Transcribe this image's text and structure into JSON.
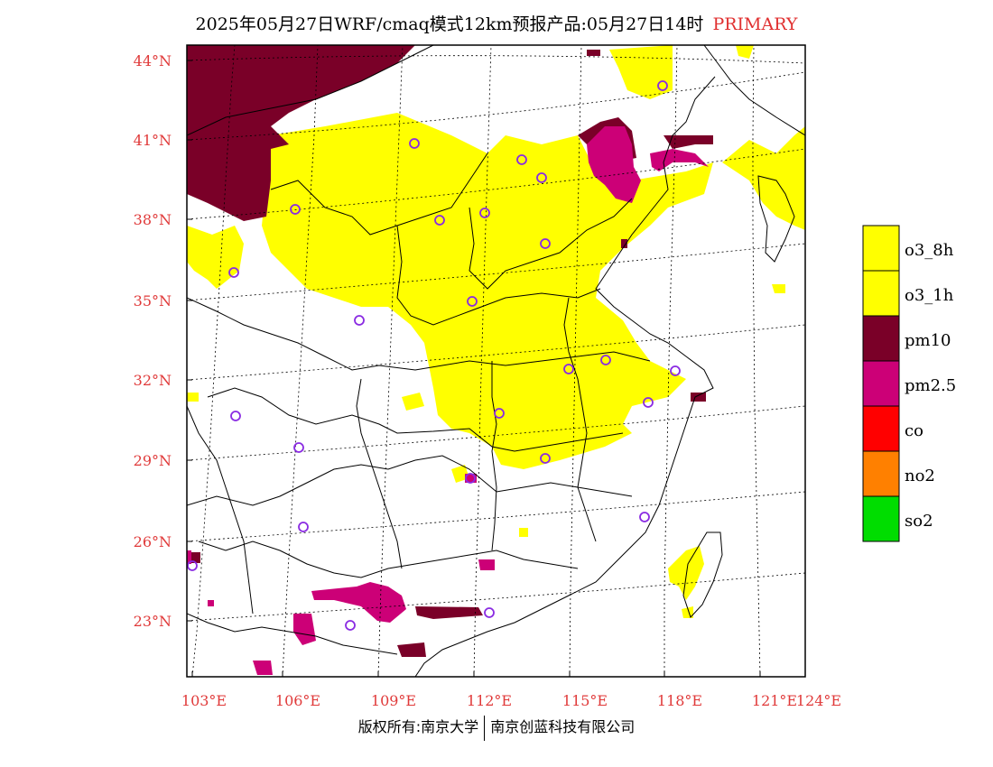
{
  "title": {
    "main": "2025年05月27日WRF/cmaq模式12km预报产品:05月27日14时",
    "tag": "PRIMARY"
  },
  "axes": {
    "lat_labels": [
      "44°N",
      "41°N",
      "38°N",
      "35°N",
      "32°N",
      "29°N",
      "26°N",
      "23°N"
    ],
    "lon_labels": [
      "103°E",
      "106°E",
      "109°E",
      "112°E",
      "115°E",
      "118°E",
      "121°E",
      "124°E"
    ]
  },
  "legend": {
    "items": [
      {
        "label": "o3_8h",
        "color": "#ffff00"
      },
      {
        "label": "o3_1h",
        "color": "#ffff00"
      },
      {
        "label": "pm10",
        "color": "#7a0028"
      },
      {
        "label": "pm2.5",
        "color": "#cc0077"
      },
      {
        "label": "co",
        "color": "#ff0000"
      },
      {
        "label": "no2",
        "color": "#ff8000"
      },
      {
        "label": "so2",
        "color": "#00dd00"
      }
    ]
  },
  "footer": {
    "left": "版权所有:南京大学",
    "right": "南京创蓝科技有限公司"
  },
  "colors": {
    "o3": "#ffff00",
    "pm10": "#7a0028",
    "pm25": "#cc0077",
    "station": "#8a2be2",
    "boundary": "#000000",
    "label": "#e03a3a"
  }
}
